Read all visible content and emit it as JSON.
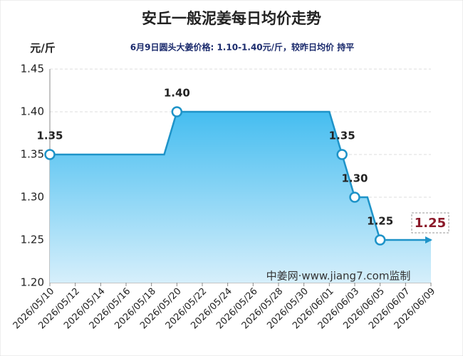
{
  "chart_data": {
    "type": "line",
    "title": "安丘一般泥姜每日均价走势",
    "subtitle": "6月9日圆头大姜价格: 1.10-1.40元/斤，较昨日均价 持平",
    "y_label": "元/斤",
    "annotation": "中姜网·www.jiang7.com监制",
    "categories": [
      "2026/05/10",
      null,
      "2026/05/12",
      null,
      "2026/05/14",
      null,
      "2026/05/16",
      null,
      "2026/05/18",
      null,
      "2026/05/20",
      null,
      "2026/05/22",
      null,
      "2026/05/24",
      null,
      "2026/05/26",
      null,
      "2026/05/28",
      null,
      "2026/05/30",
      null,
      "2026/06/01",
      null,
      "2026/06/03",
      null,
      "2026/06/05",
      null,
      "2026/06/07",
      null,
      "2026/06/09"
    ],
    "values": [
      1.35,
      1.35,
      1.35,
      1.35,
      1.35,
      1.35,
      1.35,
      1.35,
      1.35,
      1.35,
      1.4,
      1.4,
      1.4,
      1.4,
      1.4,
      1.4,
      1.4,
      1.4,
      1.4,
      1.4,
      1.4,
      1.4,
      1.4,
      1.35,
      1.3,
      1.3,
      1.25,
      1.25,
      1.25,
      1.25,
      1.25
    ],
    "value_labels": [
      "1.35",
      null,
      null,
      null,
      null,
      null,
      null,
      null,
      null,
      null,
      "1.40",
      null,
      null,
      null,
      null,
      null,
      null,
      null,
      null,
      null,
      null,
      null,
      null,
      "1.35",
      "1.30",
      null,
      "1.25",
      null,
      null,
      null,
      "1.25"
    ],
    "color": "#1e93c8",
    "ylim": [
      1.2,
      1.45
    ],
    "yticks": [
      {
        "value": 1.2,
        "label": "1.20"
      },
      1.25,
      {
        "value": 1.3,
        "label": "1.30"
      },
      1.35,
      {
        "value": 1.4,
        "label": "1.40"
      },
      1.45
    ],
    "grid": true
  }
}
